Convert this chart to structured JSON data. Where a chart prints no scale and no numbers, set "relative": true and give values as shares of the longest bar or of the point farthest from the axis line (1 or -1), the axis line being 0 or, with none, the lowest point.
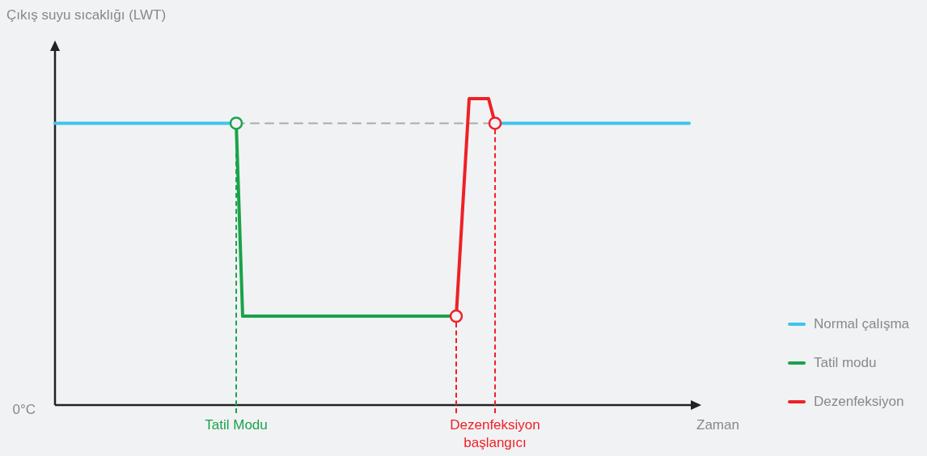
{
  "chart_data": {
    "type": "line",
    "relative": true,
    "xlabel": "Zaman",
    "annotations": [
      "Çıkış suyu sıcaklığı (LWT)",
      "0°C"
    ],
    "legend": "right",
    "marker": "none",
    "tick_labels": "x",
    "categories": [
      null,
      null,
      null,
      null,
      null,
      null,
      null,
      null,
      null,
      null,
      null,
      null,
      null,
      null,
      null,
      null,
      null,
      null,
      null,
      null,
      null,
      null,
      null,
      null,
      null,
      null,
      null,
      null,
      "Tatil Modu",
      null,
      null,
      null,
      null,
      null,
      null,
      null,
      null,
      null,
      null,
      null,
      null,
      null,
      null,
      null,
      null,
      null,
      null,
      null,
      null,
      null,
      null,
      null,
      null,
      null,
      null,
      null,
      null,
      null,
      null,
      null,
      null,
      null,
      null,
      null,
      null,
      null,
      null,
      null,
      "Dezenfeksiyon\nbaşlangıcı",
      null,
      null,
      null,
      null,
      null,
      null,
      null,
      null,
      null,
      null,
      null,
      null,
      null,
      null,
      null,
      null,
      null,
      null,
      null,
      null,
      null,
      null,
      null,
      null,
      null,
      null,
      null,
      null,
      null,
      null
    ],
    "series": [
      {
        "color": "#aaaaaa",
        "line_style": "dashed",
        "values": [
          null,
          null,
          null,
          null,
          null,
          null,
          null,
          null,
          null,
          null,
          null,
          null,
          null,
          null,
          null,
          null,
          null,
          null,
          null,
          null,
          null,
          null,
          null,
          null,
          null,
          null,
          null,
          null,
          0.92,
          0.92,
          0.92,
          0.92,
          0.92,
          0.92,
          0.92,
          0.92,
          0.92,
          0.92,
          0.92,
          0.92,
          0.92,
          0.92,
          0.92,
          0.92,
          0.92,
          0.92,
          0.92,
          0.92,
          0.92,
          0.92,
          0.92,
          0.92,
          0.92,
          0.92,
          0.92,
          0.92,
          0.92,
          0.92,
          0.92,
          0.92,
          0.92,
          0.92,
          0.92,
          0.92,
          0.92,
          0.92,
          0.92,
          0.92,
          0.92,
          null,
          null,
          null,
          null,
          null,
          null,
          null,
          null,
          null,
          null,
          null,
          null,
          null,
          null,
          null,
          null,
          null,
          null,
          null,
          null,
          null,
          null,
          null,
          null,
          null,
          null,
          null,
          null,
          null,
          null
        ]
      },
      {
        "name": "Normal çalışma",
        "color": "#3ec4ee",
        "values": [
          0.92,
          0.92,
          0.92,
          0.92,
          0.92,
          0.92,
          0.92,
          0.92,
          0.92,
          0.92,
          0.92,
          0.92,
          0.92,
          0.92,
          0.92,
          0.92,
          0.92,
          0.92,
          0.92,
          0.92,
          0.92,
          0.92,
          0.92,
          0.92,
          0.92,
          0.92,
          0.92,
          0.92,
          0.92,
          null,
          null,
          null,
          null,
          null,
          null,
          null,
          null,
          null,
          null,
          null,
          null,
          null,
          null,
          null,
          null,
          null,
          null,
          null,
          null,
          null,
          null,
          null,
          null,
          null,
          null,
          null,
          null,
          null,
          null,
          null,
          null,
          null,
          null,
          null,
          null,
          null,
          null,
          null,
          0.92,
          0.92,
          0.92,
          0.92,
          0.92,
          0.92,
          0.92,
          0.92,
          0.92,
          0.92,
          0.92,
          0.92,
          0.92,
          0.92,
          0.92,
          0.92,
          0.92,
          0.92,
          0.92,
          0.92,
          0.92,
          0.92,
          0.92,
          0.92,
          0.92,
          0.92,
          0.92,
          0.92,
          0.92,
          0.92,
          0.92
        ]
      },
      {
        "name": "Tatil modu",
        "color": "#1aa34a",
        "values": [
          null,
          null,
          null,
          null,
          null,
          null,
          null,
          null,
          null,
          null,
          null,
          null,
          null,
          null,
          null,
          null,
          null,
          null,
          null,
          null,
          null,
          null,
          null,
          null,
          null,
          null,
          null,
          null,
          0.92,
          0.29,
          0.29,
          0.29,
          0.29,
          0.29,
          0.29,
          0.29,
          0.29,
          0.29,
          0.29,
          0.29,
          0.29,
          0.29,
          0.29,
          0.29,
          0.29,
          0.29,
          0.29,
          0.29,
          0.29,
          0.29,
          0.29,
          0.29,
          0.29,
          0.29,
          0.29,
          0.29,
          0.29,
          0.29,
          0.29,
          0.29,
          0.29,
          0.29,
          0.29,
          null,
          null,
          null,
          null,
          null,
          null,
          null,
          null,
          null,
          null,
          null,
          null,
          null,
          null,
          null,
          null,
          null,
          null,
          null,
          null,
          null,
          null,
          null,
          null,
          null,
          null,
          null,
          null,
          null,
          null,
          null,
          null,
          null,
          null,
          null,
          null
        ]
      },
      {
        "name": "Dezenfeksiyon",
        "color": "#ee2127",
        "values": [
          null,
          null,
          null,
          null,
          null,
          null,
          null,
          null,
          null,
          null,
          null,
          null,
          null,
          null,
          null,
          null,
          null,
          null,
          null,
          null,
          null,
          null,
          null,
          null,
          null,
          null,
          null,
          null,
          null,
          null,
          null,
          null,
          null,
          null,
          null,
          null,
          null,
          null,
          null,
          null,
          null,
          null,
          null,
          null,
          null,
          null,
          null,
          null,
          null,
          null,
          null,
          null,
          null,
          null,
          null,
          null,
          null,
          null,
          null,
          null,
          null,
          null,
          0.29,
          0.645,
          1,
          1,
          1,
          1,
          0.92,
          null,
          null,
          null,
          null,
          null,
          null,
          null,
          null,
          null,
          null,
          null,
          null,
          null,
          null,
          null,
          null,
          null,
          null,
          null,
          null,
          null,
          null,
          null,
          null,
          null,
          null,
          null,
          null,
          null,
          null
        ]
      },
      {
        "type": "scatter",
        "marker": "circle",
        "colors": [
          null,
          null,
          null,
          null,
          null,
          null,
          null,
          null,
          null,
          null,
          null,
          null,
          null,
          null,
          null,
          null,
          null,
          null,
          null,
          null,
          null,
          null,
          null,
          null,
          null,
          null,
          null,
          null,
          "#1aa34a",
          null,
          null,
          null,
          null,
          null,
          null,
          null,
          null,
          null,
          null,
          null,
          null,
          null,
          null,
          null,
          null,
          null,
          null,
          null,
          null,
          null,
          null,
          null,
          null,
          null,
          null,
          null,
          null,
          null,
          null,
          null,
          null,
          null,
          "#ee2127",
          null,
          null,
          null,
          null,
          null,
          "#ee2127",
          null,
          null,
          null,
          null,
          null,
          null,
          null,
          null,
          null,
          null,
          null,
          null,
          null,
          null,
          null,
          null,
          null,
          null,
          null,
          null,
          null,
          null,
          null,
          null,
          null,
          null,
          null,
          null,
          null,
          null
        ],
        "values": [
          null,
          null,
          null,
          null,
          null,
          null,
          null,
          null,
          null,
          null,
          null,
          null,
          null,
          null,
          null,
          null,
          null,
          null,
          null,
          null,
          null,
          null,
          null,
          null,
          null,
          null,
          null,
          null,
          0.92,
          null,
          null,
          null,
          null,
          null,
          null,
          null,
          null,
          null,
          null,
          null,
          null,
          null,
          null,
          null,
          null,
          null,
          null,
          null,
          null,
          null,
          null,
          null,
          null,
          null,
          null,
          null,
          null,
          null,
          null,
          null,
          null,
          null,
          0.29,
          null,
          null,
          null,
          null,
          null,
          0.92,
          null,
          null,
          null,
          null,
          null,
          null,
          null,
          null,
          null,
          null,
          null,
          null,
          null,
          null,
          null,
          null,
          null,
          null,
          null,
          null,
          null,
          null,
          null,
          null,
          null,
          null,
          null,
          null,
          null,
          null
        ]
      }
    ]
  }
}
